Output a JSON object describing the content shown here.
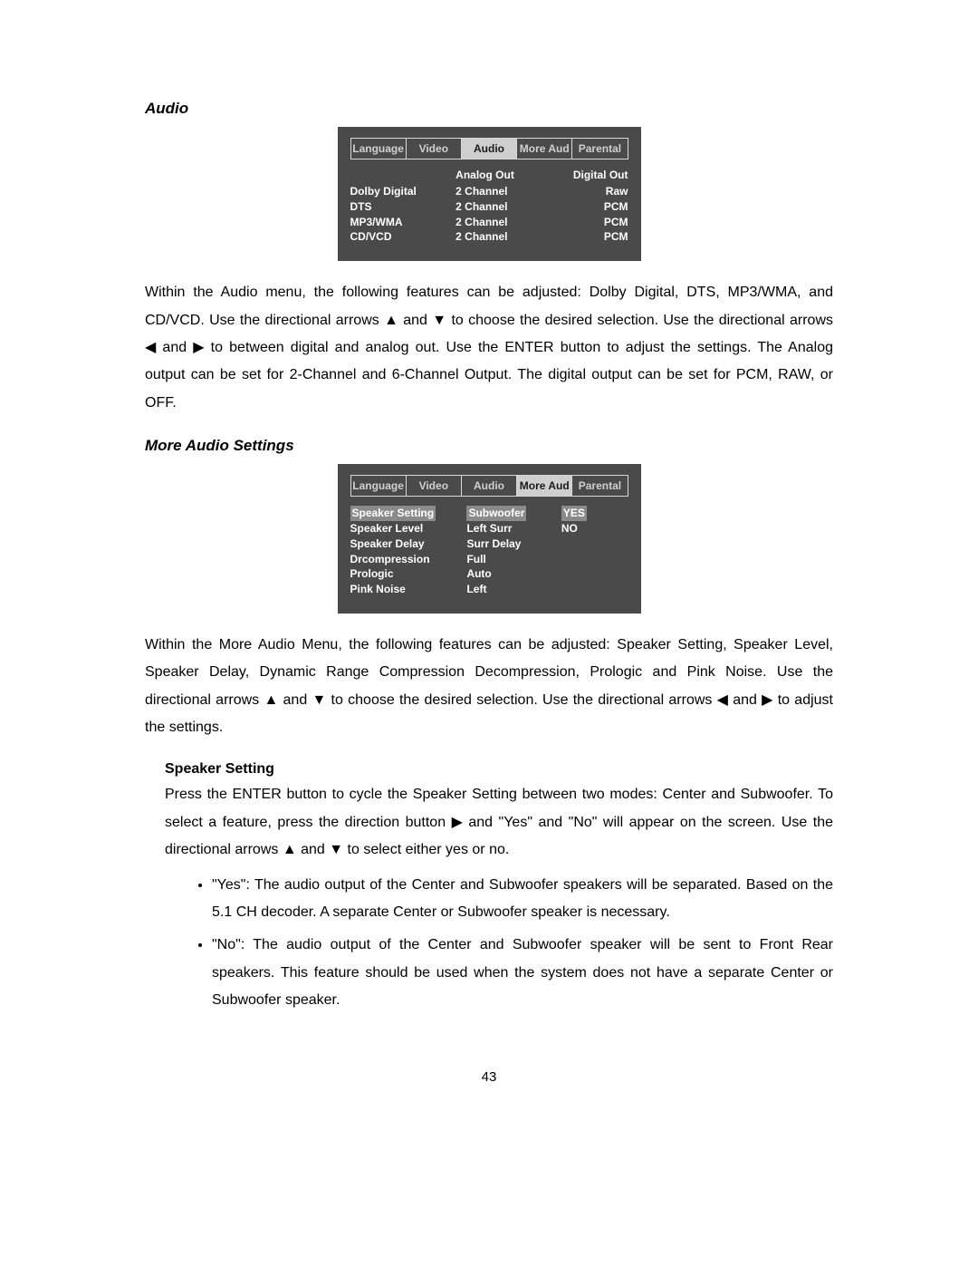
{
  "arrows": {
    "up": "▲",
    "down": "▼",
    "left": "◀",
    "right": "▶"
  },
  "page_number": "43",
  "section1": {
    "title": "Audio",
    "menu": {
      "tabs": [
        "Language",
        "Video",
        "Audio",
        "More Aud",
        "Parental"
      ],
      "active_tab_index": 2,
      "headers": {
        "analog": "Analog Out",
        "digital": "Digital Out"
      },
      "rows": [
        {
          "label": "Dolby Digital",
          "analog": "2 Channel",
          "digital": "Raw"
        },
        {
          "label": "DTS",
          "analog": "2 Channel",
          "digital": "PCM"
        },
        {
          "label": "MP3/WMA",
          "analog": "2 Channel",
          "digital": "PCM"
        },
        {
          "label": "CD/VCD",
          "analog": "2 Channel",
          "digital": "PCM"
        }
      ]
    },
    "para_a": "Within the Audio menu, the following features can be adjusted: Dolby Digital, DTS, MP3/WMA, and CD/VCD. Use the directional arrows ",
    "para_b": " and ",
    "para_c": " to choose the desired selection. Use the directional arrows ",
    "para_d": " and ",
    "para_e": " to between digital and analog out.   Use the ENTER button to adjust the settings. The Analog output can be set for 2-Channel and 6-Channel Output. The digital output can be set for PCM, RAW, or OFF."
  },
  "section2": {
    "title": "More Audio Settings",
    "menu": {
      "tabs": [
        "Language",
        "Video",
        "Audio",
        "More Aud",
        "Parental"
      ],
      "active_tab_index": 3,
      "col1": [
        "Speaker Setting",
        "Speaker Level",
        "Speaker Delay",
        "Drcompression",
        "Prologic",
        "Pink Noise"
      ],
      "col2": [
        "Subwoofer",
        "Left Surr",
        "Surr Delay",
        "Full",
        "Auto",
        "Left"
      ],
      "col3": [
        "YES",
        "NO"
      ],
      "highlight_row": 0
    },
    "para_a": "Within the More Audio Menu, the following features can be adjusted: Speaker Setting, Speaker Level, Speaker Delay, Dynamic Range Compression Decompression, Prologic and Pink Noise. Use the directional arrows ",
    "para_b": " and ",
    "para_c": " to choose the desired selection. Use the directional arrows ",
    "para_d": " and ",
    "para_e": " to adjust the settings.",
    "speaker": {
      "heading": "Speaker Setting",
      "p_a": "Press the ENTER button to cycle the Speaker Setting between two modes: Center and Subwoofer. To select a feature, press the direction button ",
      "p_b": " and \"Yes\" and \"No\" will appear on the screen. Use the directional arrows ",
      "p_c": " and ",
      "p_d": " to select either yes or no.",
      "bullets": [
        "\"Yes\": The audio output of the Center and Subwoofer speakers will be separated. Based on the 5.1 CH decoder. A separate Center or Subwoofer speaker is necessary.",
        "\"No\": The audio output of the Center and Subwoofer speaker will be sent to Front Rear speakers. This feature should be used when the system does not have a separate Center or Subwoofer speaker."
      ]
    }
  }
}
